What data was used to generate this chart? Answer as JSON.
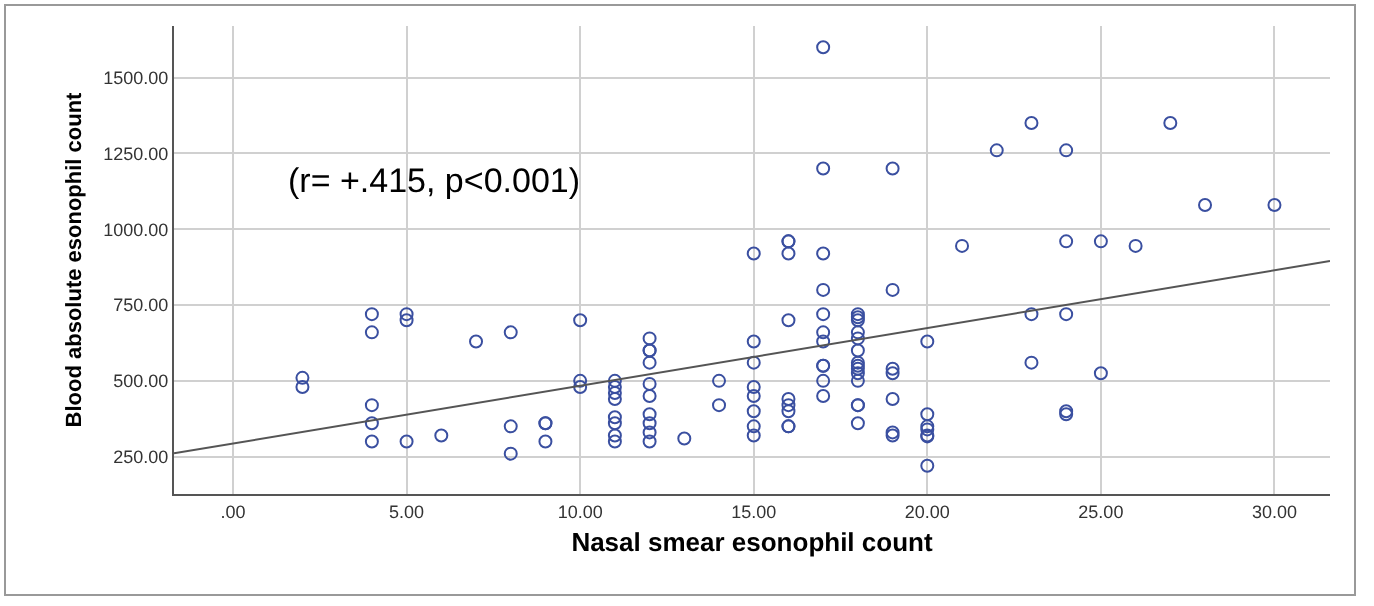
{
  "chart_data": {
    "type": "scatter",
    "xlabel": "Nasal smear esonophil count",
    "ylabel": "Blood absolute esonophil count",
    "annotations": [
      "(r= +.415, p<0.001)"
    ],
    "xlim": [
      -1.7,
      31.6
    ],
    "ylim": [
      127,
      1670
    ],
    "xticks": [
      {
        "value": 0,
        "label": ".00"
      },
      {
        "value": 5,
        "label": "5.00"
      },
      {
        "value": 10,
        "label": "10.00"
      },
      {
        "value": 15,
        "label": "15.00"
      },
      {
        "value": 20,
        "label": "20.00"
      },
      {
        "value": 25,
        "label": "25.00"
      },
      {
        "value": 30,
        "label": "30.00"
      }
    ],
    "yticks": [
      {
        "value": 250,
        "label": "250.00"
      },
      {
        "value": 500,
        "label": "500.00"
      },
      {
        "value": 750,
        "label": "750.00"
      },
      {
        "value": 1000,
        "label": "1000.00"
      },
      {
        "value": 1250,
        "label": "1250.00"
      },
      {
        "value": 1500,
        "label": "1500.00"
      }
    ],
    "grid": true,
    "marker": "circle",
    "series": [
      {
        "color": "#3a4fa0",
        "x": [
          2,
          2,
          4,
          4,
          4,
          4,
          4,
          5,
          5,
          5,
          6,
          7,
          8,
          8,
          8,
          9,
          9,
          9,
          10,
          10,
          10,
          11,
          11,
          11,
          11,
          11,
          11,
          11,
          11,
          12,
          12,
          12,
          12,
          12,
          12,
          12,
          12,
          12,
          12,
          13,
          14,
          14,
          15,
          15,
          15,
          15,
          15,
          15,
          15,
          15,
          16,
          16,
          16,
          16,
          16,
          16,
          16,
          16,
          16,
          17,
          17,
          17,
          17,
          17,
          17,
          17,
          17,
          17,
          17,
          17,
          18,
          18,
          18,
          18,
          18,
          18,
          18,
          18,
          18,
          18,
          18,
          18,
          18,
          18,
          19,
          19,
          19,
          19,
          19,
          19,
          19,
          20,
          20,
          20,
          20,
          20,
          20,
          20,
          21,
          22,
          23,
          23,
          23,
          24,
          24,
          24,
          24,
          24,
          25,
          25,
          26,
          27,
          28,
          30
        ],
        "values": [
          510,
          480,
          720,
          660,
          420,
          360,
          300,
          720,
          700,
          300,
          320,
          630,
          660,
          350,
          260,
          360,
          360,
          300,
          700,
          500,
          480,
          500,
          480,
          460,
          440,
          380,
          360,
          320,
          300,
          640,
          600,
          600,
          560,
          490,
          450,
          390,
          360,
          330,
          300,
          310,
          500,
          420,
          920,
          630,
          560,
          480,
          450,
          400,
          350,
          320,
          960,
          960,
          920,
          700,
          440,
          420,
          400,
          350,
          350,
          1600,
          1200,
          920,
          800,
          720,
          660,
          630,
          550,
          550,
          500,
          450,
          720,
          710,
          700,
          660,
          640,
          600,
          560,
          550,
          540,
          525,
          500,
          420,
          420,
          360,
          1200,
          800,
          540,
          525,
          440,
          330,
          320,
          630,
          390,
          350,
          340,
          320,
          317,
          220,
          945,
          1260,
          1350,
          720,
          560,
          1260,
          960,
          720,
          400,
          390,
          960,
          525,
          945,
          1350,
          1080,
          1080
        ]
      },
      {
        "type": "line",
        "color": "#555555",
        "x": [
          -1.7,
          31.6
        ],
        "values": [
          261,
          895
        ],
        "marker": "none",
        "line_style": "solid"
      }
    ]
  }
}
